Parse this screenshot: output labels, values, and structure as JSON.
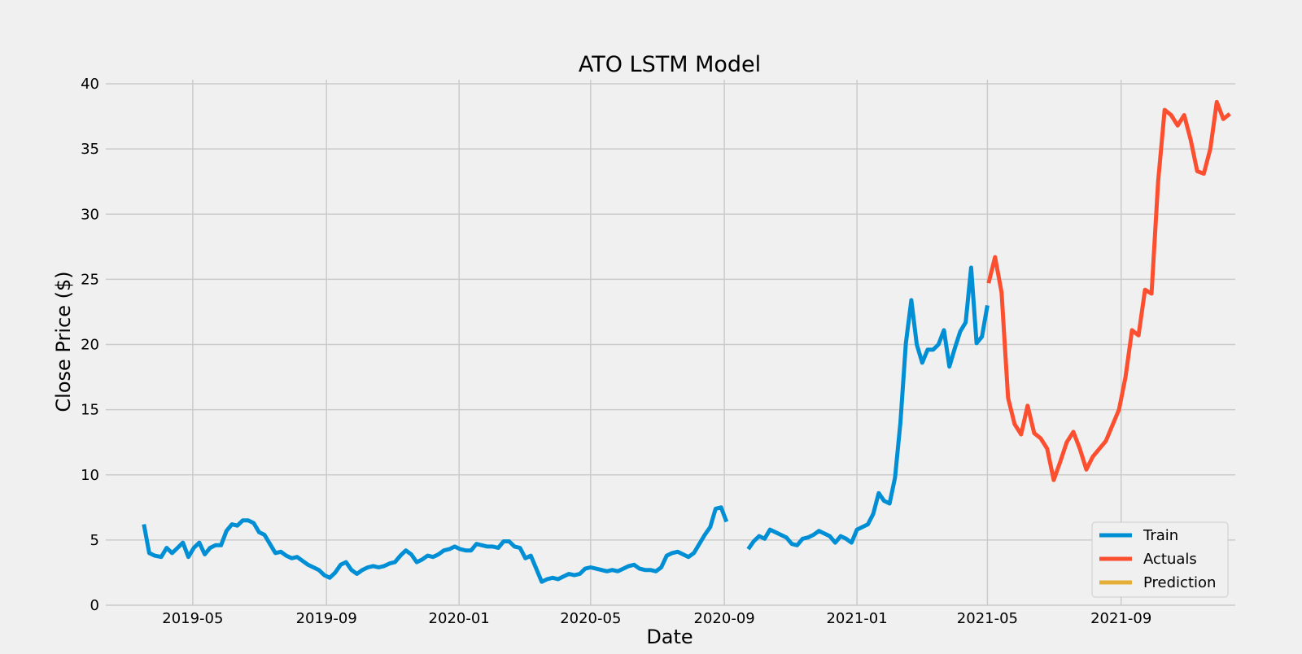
{
  "chart_data": {
    "type": "line",
    "title": "ATO LSTM Model",
    "xlabel": "Date",
    "ylabel": "Close Price ($)",
    "ylim": [
      0,
      40
    ],
    "xlim": [
      "2019-02-10",
      "2021-12-15"
    ],
    "grid": true,
    "legend_position": "bottom-right",
    "yticks": [
      0,
      5,
      10,
      15,
      20,
      25,
      30,
      35,
      40
    ],
    "xticks": [
      "2019-05",
      "2019-09",
      "2020-01",
      "2020-05",
      "2020-09",
      "2021-01",
      "2021-05",
      "2021-09"
    ],
    "series": [
      {
        "name": "Train",
        "color": "#008fd5",
        "segments": [
          [
            [
              "2019-03-17",
              6.2
            ],
            [
              "2019-03-22",
              4.0
            ],
            [
              "2019-03-27",
              3.8
            ],
            [
              "2019-04-02",
              3.7
            ],
            [
              "2019-04-07",
              4.4
            ],
            [
              "2019-04-12",
              4.0
            ],
            [
              "2019-04-17",
              4.4
            ],
            [
              "2019-04-22",
              4.8
            ],
            [
              "2019-04-27",
              3.7
            ],
            [
              "2019-05-02",
              4.4
            ],
            [
              "2019-05-07",
              4.8
            ],
            [
              "2019-05-12",
              3.9
            ],
            [
              "2019-05-17",
              4.4
            ],
            [
              "2019-05-22",
              4.6
            ],
            [
              "2019-05-27",
              4.6
            ],
            [
              "2019-06-01",
              5.7
            ],
            [
              "2019-06-06",
              6.2
            ],
            [
              "2019-06-11",
              6.1
            ],
            [
              "2019-06-16",
              6.5
            ],
            [
              "2019-06-21",
              6.5
            ],
            [
              "2019-06-26",
              6.3
            ],
            [
              "2019-07-01",
              5.6
            ],
            [
              "2019-07-06",
              5.4
            ],
            [
              "2019-07-11",
              4.7
            ],
            [
              "2019-07-16",
              4.0
            ],
            [
              "2019-07-21",
              4.1
            ],
            [
              "2019-07-26",
              3.8
            ],
            [
              "2019-07-31",
              3.6
            ],
            [
              "2019-08-05",
              3.7
            ],
            [
              "2019-08-10",
              3.4
            ],
            [
              "2019-08-15",
              3.1
            ],
            [
              "2019-08-20",
              2.9
            ],
            [
              "2019-08-25",
              2.7
            ],
            [
              "2019-08-30",
              2.3
            ],
            [
              "2019-09-04",
              2.1
            ],
            [
              "2019-09-09",
              2.5
            ],
            [
              "2019-09-14",
              3.1
            ],
            [
              "2019-09-19",
              3.3
            ],
            [
              "2019-09-24",
              2.7
            ],
            [
              "2019-09-29",
              2.4
            ],
            [
              "2019-10-04",
              2.7
            ],
            [
              "2019-10-09",
              2.9
            ],
            [
              "2019-10-14",
              3.0
            ],
            [
              "2019-10-19",
              2.9
            ],
            [
              "2019-10-24",
              3.0
            ],
            [
              "2019-10-29",
              3.2
            ],
            [
              "2019-11-03",
              3.3
            ],
            [
              "2019-11-08",
              3.8
            ],
            [
              "2019-11-13",
              4.2
            ],
            [
              "2019-11-18",
              3.9
            ],
            [
              "2019-11-23",
              3.3
            ],
            [
              "2019-11-28",
              3.5
            ],
            [
              "2019-12-03",
              3.8
            ],
            [
              "2019-12-08",
              3.7
            ],
            [
              "2019-12-13",
              3.9
            ],
            [
              "2019-12-18",
              4.2
            ],
            [
              "2019-12-23",
              4.3
            ],
            [
              "2019-12-28",
              4.5
            ],
            [
              "2020-01-02",
              4.3
            ],
            [
              "2020-01-07",
              4.2
            ],
            [
              "2020-01-12",
              4.2
            ],
            [
              "2020-01-17",
              4.7
            ],
            [
              "2020-01-22",
              4.6
            ],
            [
              "2020-01-27",
              4.5
            ],
            [
              "2020-02-01",
              4.5
            ],
            [
              "2020-02-06",
              4.4
            ],
            [
              "2020-02-11",
              4.9
            ],
            [
              "2020-02-16",
              4.9
            ],
            [
              "2020-02-21",
              4.5
            ],
            [
              "2020-02-26",
              4.4
            ],
            [
              "2020-03-02",
              3.6
            ],
            [
              "2020-03-07",
              3.8
            ],
            [
              "2020-03-12",
              2.8
            ],
            [
              "2020-03-17",
              1.8
            ],
            [
              "2020-03-22",
              2.0
            ],
            [
              "2020-03-27",
              2.1
            ],
            [
              "2020-04-01",
              2.0
            ],
            [
              "2020-04-06",
              2.2
            ],
            [
              "2020-04-11",
              2.4
            ],
            [
              "2020-04-16",
              2.3
            ],
            [
              "2020-04-21",
              2.4
            ],
            [
              "2020-04-26",
              2.8
            ],
            [
              "2020-05-01",
              2.9
            ],
            [
              "2020-05-06",
              2.8
            ],
            [
              "2020-05-11",
              2.7
            ],
            [
              "2020-05-16",
              2.6
            ],
            [
              "2020-05-21",
              2.7
            ],
            [
              "2020-05-26",
              2.6
            ],
            [
              "2020-05-31",
              2.8
            ],
            [
              "2020-06-05",
              3.0
            ],
            [
              "2020-06-10",
              3.1
            ],
            [
              "2020-06-15",
              2.8
            ],
            [
              "2020-06-20",
              2.7
            ],
            [
              "2020-06-25",
              2.7
            ],
            [
              "2020-06-30",
              2.6
            ],
            [
              "2020-07-05",
              2.9
            ],
            [
              "2020-07-10",
              3.8
            ],
            [
              "2020-07-15",
              4.0
            ],
            [
              "2020-07-20",
              4.1
            ],
            [
              "2020-07-25",
              3.9
            ],
            [
              "2020-07-30",
              3.7
            ],
            [
              "2020-08-04",
              4.0
            ],
            [
              "2020-08-09",
              4.7
            ],
            [
              "2020-08-14",
              5.4
            ],
            [
              "2020-08-19",
              6.0
            ],
            [
              "2020-08-24",
              7.4
            ],
            [
              "2020-08-29",
              7.5
            ],
            [
              "2020-09-03",
              6.4
            ]
          ],
          [
            [
              "2020-09-23",
              4.3
            ],
            [
              "2020-09-28",
              4.9
            ],
            [
              "2020-10-03",
              5.3
            ],
            [
              "2020-10-08",
              5.1
            ],
            [
              "2020-10-13",
              5.8
            ],
            [
              "2020-10-18",
              5.6
            ],
            [
              "2020-10-23",
              5.4
            ],
            [
              "2020-10-28",
              5.2
            ],
            [
              "2020-11-02",
              4.7
            ],
            [
              "2020-11-07",
              4.6
            ],
            [
              "2020-11-12",
              5.1
            ],
            [
              "2020-11-17",
              5.2
            ],
            [
              "2020-11-22",
              5.4
            ],
            [
              "2020-11-27",
              5.7
            ],
            [
              "2020-12-02",
              5.5
            ],
            [
              "2020-12-07",
              5.3
            ],
            [
              "2020-12-12",
              4.8
            ],
            [
              "2020-12-17",
              5.3
            ],
            [
              "2020-12-22",
              5.1
            ],
            [
              "2020-12-27",
              4.8
            ],
            [
              "2021-01-01",
              5.8
            ],
            [
              "2021-01-06",
              6.0
            ],
            [
              "2021-01-11",
              6.2
            ],
            [
              "2021-01-16",
              7.0
            ],
            [
              "2021-01-21",
              8.6
            ],
            [
              "2021-01-26",
              8.0
            ],
            [
              "2021-01-31",
              7.8
            ],
            [
              "2021-02-05",
              9.8
            ],
            [
              "2021-02-10",
              14.0
            ],
            [
              "2021-02-15",
              20.1
            ],
            [
              "2021-02-20",
              23.4
            ],
            [
              "2021-02-25",
              20.0
            ],
            [
              "2021-03-02",
              18.6
            ],
            [
              "2021-03-07",
              19.6
            ],
            [
              "2021-03-12",
              19.6
            ],
            [
              "2021-03-17",
              20.0
            ],
            [
              "2021-03-22",
              21.1
            ],
            [
              "2021-03-27",
              18.3
            ],
            [
              "2021-04-01",
              19.7
            ],
            [
              "2021-04-06",
              21.0
            ],
            [
              "2021-04-11",
              21.7
            ],
            [
              "2021-04-16",
              25.9
            ],
            [
              "2021-04-21",
              20.1
            ],
            [
              "2021-04-26",
              20.6
            ],
            [
              "2021-05-01",
              23.0
            ]
          ]
        ]
      },
      {
        "name": "Actuals",
        "color": "#fc4f30",
        "segments": [
          [
            [
              "2021-05-02",
              24.7
            ],
            [
              "2021-05-08",
              26.7
            ],
            [
              "2021-05-14",
              24.0
            ],
            [
              "2021-05-20",
              15.9
            ],
            [
              "2021-05-26",
              13.9
            ],
            [
              "2021-06-01",
              13.1
            ],
            [
              "2021-06-07",
              15.3
            ],
            [
              "2021-06-13",
              13.2
            ],
            [
              "2021-06-19",
              12.8
            ],
            [
              "2021-06-25",
              12.0
            ],
            [
              "2021-07-01",
              9.6
            ],
            [
              "2021-07-07",
              11.0
            ],
            [
              "2021-07-13",
              12.5
            ],
            [
              "2021-07-19",
              13.3
            ],
            [
              "2021-07-25",
              12.0
            ],
            [
              "2021-07-31",
              10.4
            ],
            [
              "2021-08-06",
              11.4
            ],
            [
              "2021-08-12",
              12.0
            ],
            [
              "2021-08-18",
              12.6
            ],
            [
              "2021-08-24",
              13.8
            ],
            [
              "2021-08-30",
              15.0
            ],
            [
              "2021-09-05",
              17.5
            ],
            [
              "2021-09-11",
              21.1
            ],
            [
              "2021-09-17",
              20.7
            ],
            [
              "2021-09-23",
              24.2
            ],
            [
              "2021-09-29",
              23.9
            ],
            [
              "2021-10-05",
              32.5
            ],
            [
              "2021-10-11",
              38.0
            ],
            [
              "2021-10-17",
              37.6
            ],
            [
              "2021-10-23",
              36.8
            ],
            [
              "2021-10-29",
              37.6
            ],
            [
              "2021-11-04",
              35.7
            ],
            [
              "2021-11-10",
              33.3
            ],
            [
              "2021-11-16",
              33.1
            ],
            [
              "2021-11-22",
              35.0
            ],
            [
              "2021-11-28",
              38.6
            ],
            [
              "2021-12-04",
              37.3
            ],
            [
              "2021-12-10",
              37.7
            ]
          ]
        ]
      },
      {
        "name": "Prediction",
        "color": "#e5ae38",
        "segments": []
      }
    ]
  }
}
